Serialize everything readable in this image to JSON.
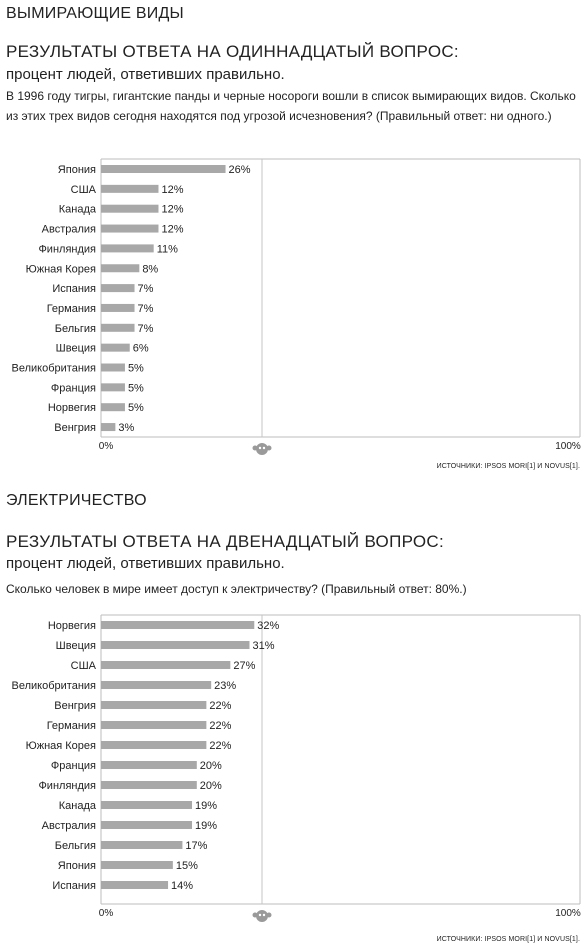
{
  "colors": {
    "bar": "#a8a8a8",
    "axis": "#bdbdbd",
    "midline": "#c4c4c4",
    "text": "#222222"
  },
  "section1": {
    "heading": "ВЫМИРАЮЩИЕ ВИДЫ",
    "question_title": "РЕЗУЛЬТАТЫ ОТВЕТА НА ОДИННАДЦАТЫЙ ВОПРОС:",
    "question_subtitle": "процент людей, ответивших правильно.",
    "question_text": "В 1996 году тигры, гигантские панды и черные носороги вошли в список вымирающих видов. Сколько из этих трех видов сегодня находятся под угрозой исчезновения? (Правильный ответ: ни одного.)",
    "source": "ИСТОЧНИКИ: IPSOS MORI[1] И NOVUS[1]."
  },
  "section2": {
    "heading": "ЭЛЕКТРИЧЕСТВО",
    "question_title": "РЕЗУЛЬТАТЫ ОТВЕТА НА ДВЕНАДЦАТЫЙ ВОПРОС:",
    "question_subtitle": "процент людей, ответивших правильно.",
    "question_text": "Сколько человек в мире имеет доступ к электричеству? (Правильный ответ: 80%.)",
    "source": "ИСТОЧНИКИ: IPSOS MORI[1] И NOVUS[1]."
  },
  "chart_data": [
    {
      "type": "bar",
      "orientation": "horizontal",
      "categories": [
        "Япония",
        "США",
        "Канада",
        "Австралия",
        "Финляндия",
        "Южная Корея",
        "Испания",
        "Германия",
        "Бельгия",
        "Швеция",
        "Великобритания",
        "Франция",
        "Норвегия",
        "Венгрия"
      ],
      "values": [
        26,
        12,
        12,
        12,
        11,
        8,
        7,
        7,
        7,
        6,
        5,
        5,
        5,
        3
      ],
      "value_suffix": "%",
      "xlim": [
        0,
        100
      ],
      "xtick_labels": [
        "0%",
        "100%"
      ],
      "grid": false,
      "legend": "none"
    },
    {
      "type": "bar",
      "orientation": "horizontal",
      "categories": [
        "Норвегия",
        "Швеция",
        "США",
        "Великобритания",
        "Венгрия",
        "Германия",
        "Южная Корея",
        "Франция",
        "Финляндия",
        "Канада",
        "Австралия",
        "Бельгия",
        "Япония",
        "Испания"
      ],
      "values": [
        32,
        31,
        27,
        23,
        22,
        22,
        22,
        20,
        20,
        19,
        19,
        17,
        15,
        14
      ],
      "value_suffix": "%",
      "xlim": [
        0,
        100
      ],
      "xtick_labels": [
        "0%",
        "100%"
      ],
      "grid": false,
      "legend": "none"
    }
  ]
}
